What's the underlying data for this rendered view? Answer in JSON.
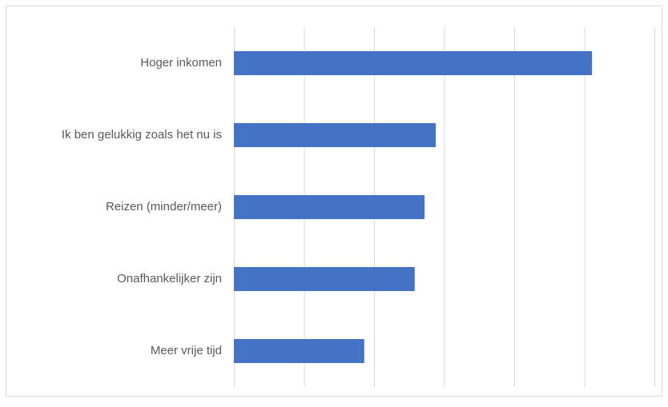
{
  "chart_data": {
    "type": "bar",
    "orientation": "horizontal",
    "categories": [
      "Hoger inkomen",
      "Ik ben gelukkig zoals het nu is",
      "Reizen (minder/meer)",
      "Onafhankelijker zijn",
      "Meer vrije tijd"
    ],
    "values": [
      5.11,
      2.88,
      2.72,
      2.58,
      1.86
    ],
    "color": "#4472c4",
    "xlim": [
      0,
      6
    ],
    "xticks": [
      0,
      1,
      2,
      3,
      4,
      5,
      6
    ],
    "grid": true
  }
}
